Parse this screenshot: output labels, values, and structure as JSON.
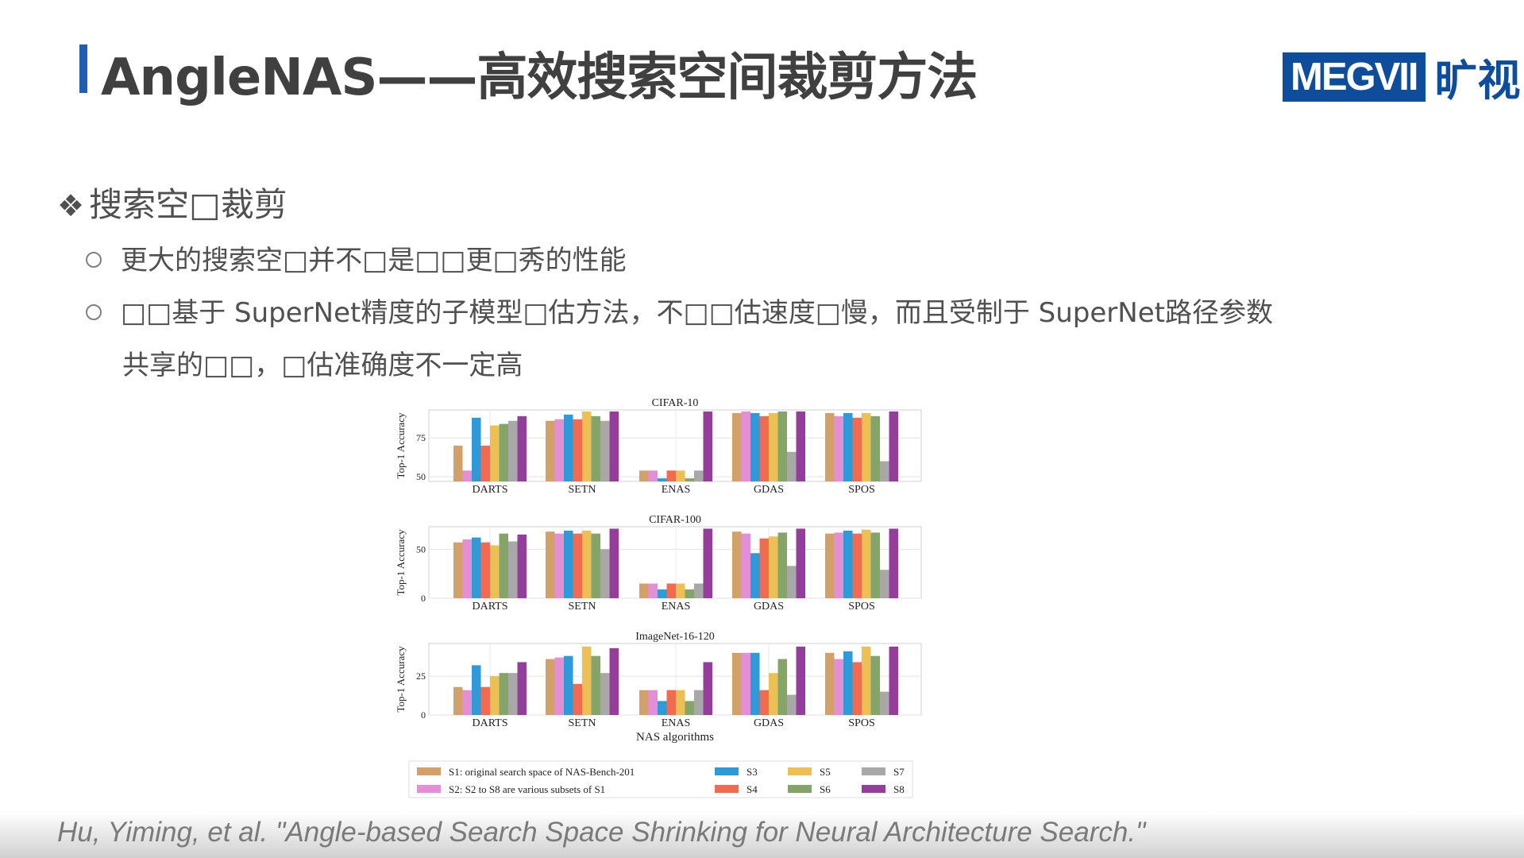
{
  "header": {
    "title": "AngleNAS——高效搜索空间裁剪方法",
    "logo_text": "MEGVII",
    "logo_cn": "旷视"
  },
  "section": {
    "marker": "❖",
    "heading": "搜索空□裁剪"
  },
  "bullets": [
    "更大的搜索空□并不□是□□更□秀的性能",
    "□□基于 SuperNet精度的子模型□估方法，不□□估速度□慢，而且受制于 SuperNet路径参数"
  ],
  "bullet_continuation": "共享的□□，□估准确度不一定高",
  "citation": "Hu, Yiming, et al. \"Angle-based Search Space Shrinking for Neural Architecture Search.\"",
  "chart_data": [
    {
      "type": "bar",
      "title": "CIFAR-10",
      "ylabel": "Top-1 Accuracy",
      "ylim": [
        47,
        93
      ],
      "yticks": [
        50,
        75
      ],
      "categories": [
        "DARTS",
        "SETN",
        "ENAS",
        "GDAS",
        "SPOS"
      ],
      "series": [
        {
          "name": "S1",
          "values": [
            70,
            86,
            54,
            91,
            91
          ]
        },
        {
          "name": "S2",
          "values": [
            54,
            87,
            54,
            92,
            89
          ]
        },
        {
          "name": "S3",
          "values": [
            88,
            90,
            49,
            91,
            91
          ]
        },
        {
          "name": "S4",
          "values": [
            70,
            87,
            54,
            89,
            88
          ]
        },
        {
          "name": "S5",
          "values": [
            83,
            92,
            54,
            91,
            91
          ]
        },
        {
          "name": "S6",
          "values": [
            84,
            89,
            49,
            92,
            89
          ]
        },
        {
          "name": "S7",
          "values": [
            86,
            86,
            54,
            66,
            60
          ]
        },
        {
          "name": "S8",
          "values": [
            89,
            92,
            92,
            92,
            92
          ]
        }
      ]
    },
    {
      "type": "bar",
      "title": "CIFAR-100",
      "ylabel": "Top-1 Accuracy",
      "ylim": [
        0,
        73
      ],
      "yticks": [
        0,
        50
      ],
      "categories": [
        "DARTS",
        "SETN",
        "ENAS",
        "GDAS",
        "SPOS"
      ],
      "series": [
        {
          "name": "S1",
          "values": [
            57,
            68,
            15,
            68,
            66
          ]
        },
        {
          "name": "S2",
          "values": [
            60,
            66,
            15,
            66,
            67
          ]
        },
        {
          "name": "S3",
          "values": [
            62,
            69,
            9,
            46,
            69
          ]
        },
        {
          "name": "S4",
          "values": [
            57,
            66,
            15,
            61,
            66
          ]
        },
        {
          "name": "S5",
          "values": [
            54,
            69,
            15,
            63,
            70
          ]
        },
        {
          "name": "S6",
          "values": [
            66,
            66,
            9,
            67,
            67
          ]
        },
        {
          "name": "S7",
          "values": [
            58,
            50,
            15,
            33,
            29
          ]
        },
        {
          "name": "S8",
          "values": [
            65,
            71,
            71,
            71,
            71
          ]
        }
      ]
    },
    {
      "type": "bar",
      "title": "ImageNet-16-120",
      "ylabel": "Top-1 Accuracy",
      "xlabel": "NAS algorithms",
      "ylim": [
        0,
        46
      ],
      "yticks": [
        0,
        25
      ],
      "categories": [
        "DARTS",
        "SETN",
        "ENAS",
        "GDAS",
        "SPOS"
      ],
      "series": [
        {
          "name": "S1",
          "values": [
            18,
            36,
            16,
            40,
            40
          ]
        },
        {
          "name": "S2",
          "values": [
            16,
            37,
            16,
            40,
            36
          ]
        },
        {
          "name": "S3",
          "values": [
            32,
            38,
            9,
            40,
            41
          ]
        },
        {
          "name": "S4",
          "values": [
            18,
            20,
            16,
            16,
            34
          ]
        },
        {
          "name": "S5",
          "values": [
            25,
            44,
            16,
            27,
            44
          ]
        },
        {
          "name": "S6",
          "values": [
            27,
            38,
            9,
            36,
            38
          ]
        },
        {
          "name": "S7",
          "values": [
            27,
            27,
            16,
            13,
            15
          ]
        },
        {
          "name": "S8",
          "values": [
            34,
            43,
            34,
            44,
            44
          ]
        }
      ]
    }
  ],
  "series_colors": [
    "#d4a06a",
    "#e38ed6",
    "#2f9ad8",
    "#f06b50",
    "#ecc054",
    "#85a46a",
    "#a8a8a8",
    "#943d9a"
  ],
  "legend": {
    "items": [
      {
        "label": "S1: original search space of NAS-Bench-201",
        "color": "#d4a06a"
      },
      {
        "label": "S2: S2 to S8 are various subsets of S1",
        "color": "#e38ed6"
      },
      {
        "label": "S3",
        "color": "#2f9ad8"
      },
      {
        "label": "S4",
        "color": "#f06b50"
      },
      {
        "label": "S5",
        "color": "#ecc054"
      },
      {
        "label": "S6",
        "color": "#85a46a"
      },
      {
        "label": "S7",
        "color": "#a8a8a8"
      },
      {
        "label": "S8",
        "color": "#943d9a"
      }
    ]
  }
}
